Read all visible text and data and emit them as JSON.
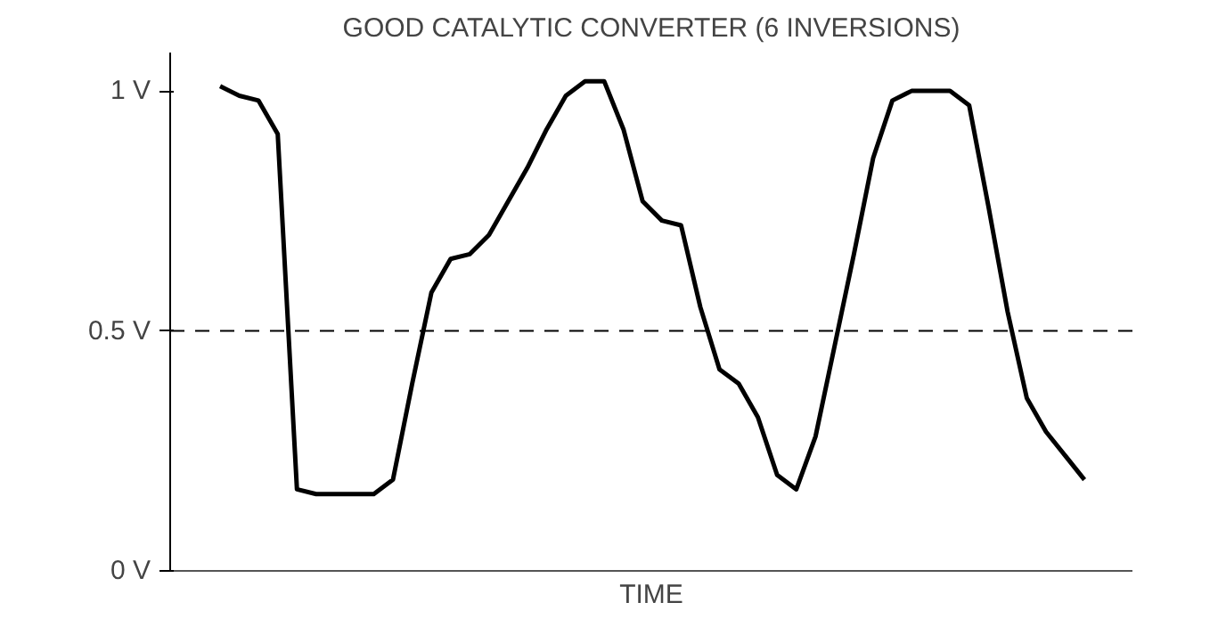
{
  "chart_data": {
    "type": "line",
    "title": "GOOD CATALYTIC CONVERTER (6 INVERSIONS)",
    "xlabel": "TIME",
    "categories": [
      null,
      null,
      null,
      null,
      null,
      null,
      null,
      null,
      null,
      null,
      null,
      null,
      null,
      null,
      null,
      null,
      null,
      null,
      null,
      null,
      null,
      null,
      null,
      null,
      null,
      null,
      null,
      null,
      null,
      null,
      null,
      null,
      null,
      null,
      null,
      null,
      null,
      null,
      null,
      null,
      null,
      null,
      null,
      null,
      null,
      null
    ],
    "series": [
      {
        "color": "#000000",
        "values": [
          1.01,
          0.99,
          0.98,
          0.91,
          0.17,
          0.16,
          0.16,
          0.16,
          0.16,
          0.19,
          0.39,
          0.58,
          0.65,
          0.66,
          0.7,
          0.77,
          0.84,
          0.92,
          0.99,
          1.02,
          1.02,
          0.92,
          0.77,
          0.73,
          0.72,
          0.55,
          0.42,
          0.39,
          0.32,
          0.2,
          0.17,
          0.28,
          0.47,
          0.66,
          0.86,
          0.98,
          1.0,
          1.0,
          1.0,
          0.97,
          0.76,
          0.54,
          0.36,
          0.29,
          0.24,
          0.19
        ]
      }
    ],
    "ylim": [
      0,
      1.08
    ],
    "yticks": [
      {
        "value": 0,
        "label": "0 V"
      },
      {
        "value": 0.5,
        "label": "0.5 V"
      },
      {
        "value": 1,
        "label": "1 V"
      }
    ],
    "tick_labels": "y",
    "grid": false,
    "marker": "none",
    "line_style": "solid",
    "ref_lines": [
      {
        "axis": "y",
        "value": 0.5,
        "color": "#000000",
        "line_style": "dashed"
      }
    ]
  }
}
